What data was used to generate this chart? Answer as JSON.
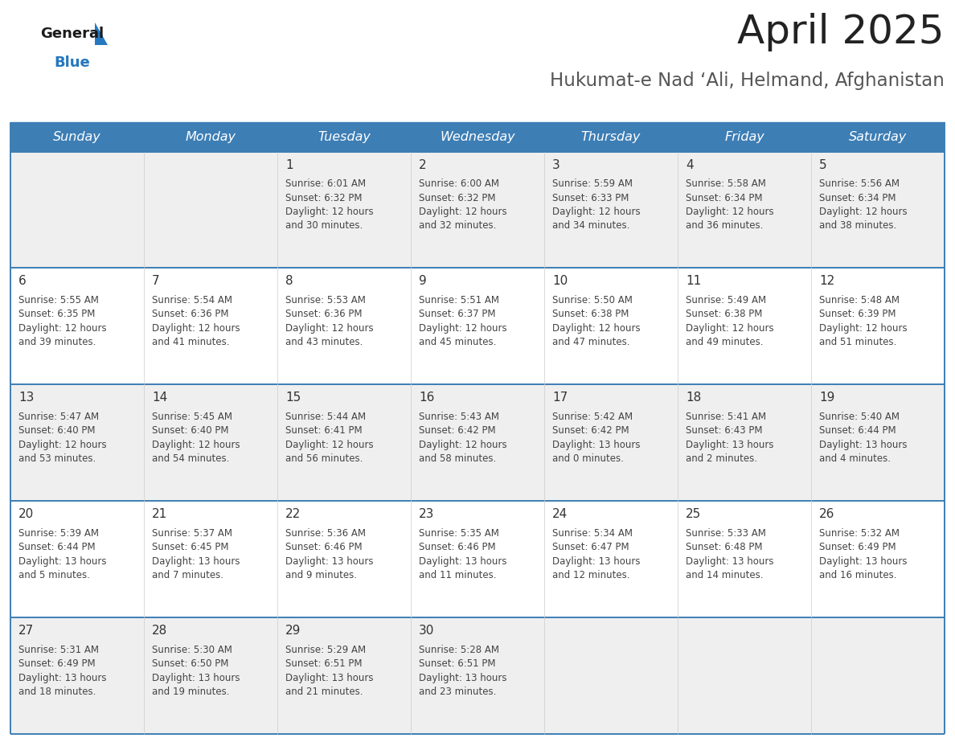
{
  "title": "April 2025",
  "subtitle": "Hukumat-e Nad ‘Ali, Helmand, Afghanistan",
  "days_of_week": [
    "Sunday",
    "Monday",
    "Tuesday",
    "Wednesday",
    "Thursday",
    "Friday",
    "Saturday"
  ],
  "header_bg_color": "#3D7EB5",
  "header_text_color": "#FFFFFF",
  "row_bg_odd": "#EFEFEF",
  "row_bg_even": "#FFFFFF",
  "cell_border_color": "#3D7EB5",
  "cell_divider_color": "#CCCCCC",
  "day_number_color": "#333333",
  "cell_text_color": "#444444",
  "title_color": "#222222",
  "subtitle_color": "#555555",
  "logo_general_color": "#1a1a1a",
  "logo_blue_color": "#2478C0",
  "calendar_data": [
    [
      {
        "day": null,
        "sunrise": null,
        "sunset": null,
        "daylight": null
      },
      {
        "day": null,
        "sunrise": null,
        "sunset": null,
        "daylight": null
      },
      {
        "day": 1,
        "sunrise": "6:01 AM",
        "sunset": "6:32 PM",
        "daylight": "12 hours\nand 30 minutes."
      },
      {
        "day": 2,
        "sunrise": "6:00 AM",
        "sunset": "6:32 PM",
        "daylight": "12 hours\nand 32 minutes."
      },
      {
        "day": 3,
        "sunrise": "5:59 AM",
        "sunset": "6:33 PM",
        "daylight": "12 hours\nand 34 minutes."
      },
      {
        "day": 4,
        "sunrise": "5:58 AM",
        "sunset": "6:34 PM",
        "daylight": "12 hours\nand 36 minutes."
      },
      {
        "day": 5,
        "sunrise": "5:56 AM",
        "sunset": "6:34 PM",
        "daylight": "12 hours\nand 38 minutes."
      }
    ],
    [
      {
        "day": 6,
        "sunrise": "5:55 AM",
        "sunset": "6:35 PM",
        "daylight": "12 hours\nand 39 minutes."
      },
      {
        "day": 7,
        "sunrise": "5:54 AM",
        "sunset": "6:36 PM",
        "daylight": "12 hours\nand 41 minutes."
      },
      {
        "day": 8,
        "sunrise": "5:53 AM",
        "sunset": "6:36 PM",
        "daylight": "12 hours\nand 43 minutes."
      },
      {
        "day": 9,
        "sunrise": "5:51 AM",
        "sunset": "6:37 PM",
        "daylight": "12 hours\nand 45 minutes."
      },
      {
        "day": 10,
        "sunrise": "5:50 AM",
        "sunset": "6:38 PM",
        "daylight": "12 hours\nand 47 minutes."
      },
      {
        "day": 11,
        "sunrise": "5:49 AM",
        "sunset": "6:38 PM",
        "daylight": "12 hours\nand 49 minutes."
      },
      {
        "day": 12,
        "sunrise": "5:48 AM",
        "sunset": "6:39 PM",
        "daylight": "12 hours\nand 51 minutes."
      }
    ],
    [
      {
        "day": 13,
        "sunrise": "5:47 AM",
        "sunset": "6:40 PM",
        "daylight": "12 hours\nand 53 minutes."
      },
      {
        "day": 14,
        "sunrise": "5:45 AM",
        "sunset": "6:40 PM",
        "daylight": "12 hours\nand 54 minutes."
      },
      {
        "day": 15,
        "sunrise": "5:44 AM",
        "sunset": "6:41 PM",
        "daylight": "12 hours\nand 56 minutes."
      },
      {
        "day": 16,
        "sunrise": "5:43 AM",
        "sunset": "6:42 PM",
        "daylight": "12 hours\nand 58 minutes."
      },
      {
        "day": 17,
        "sunrise": "5:42 AM",
        "sunset": "6:42 PM",
        "daylight": "13 hours\nand 0 minutes."
      },
      {
        "day": 18,
        "sunrise": "5:41 AM",
        "sunset": "6:43 PM",
        "daylight": "13 hours\nand 2 minutes."
      },
      {
        "day": 19,
        "sunrise": "5:40 AM",
        "sunset": "6:44 PM",
        "daylight": "13 hours\nand 4 minutes."
      }
    ],
    [
      {
        "day": 20,
        "sunrise": "5:39 AM",
        "sunset": "6:44 PM",
        "daylight": "13 hours\nand 5 minutes."
      },
      {
        "day": 21,
        "sunrise": "5:37 AM",
        "sunset": "6:45 PM",
        "daylight": "13 hours\nand 7 minutes."
      },
      {
        "day": 22,
        "sunrise": "5:36 AM",
        "sunset": "6:46 PM",
        "daylight": "13 hours\nand 9 minutes."
      },
      {
        "day": 23,
        "sunrise": "5:35 AM",
        "sunset": "6:46 PM",
        "daylight": "13 hours\nand 11 minutes."
      },
      {
        "day": 24,
        "sunrise": "5:34 AM",
        "sunset": "6:47 PM",
        "daylight": "13 hours\nand 12 minutes."
      },
      {
        "day": 25,
        "sunrise": "5:33 AM",
        "sunset": "6:48 PM",
        "daylight": "13 hours\nand 14 minutes."
      },
      {
        "day": 26,
        "sunrise": "5:32 AM",
        "sunset": "6:49 PM",
        "daylight": "13 hours\nand 16 minutes."
      }
    ],
    [
      {
        "day": 27,
        "sunrise": "5:31 AM",
        "sunset": "6:49 PM",
        "daylight": "13 hours\nand 18 minutes."
      },
      {
        "day": 28,
        "sunrise": "5:30 AM",
        "sunset": "6:50 PM",
        "daylight": "13 hours\nand 19 minutes."
      },
      {
        "day": 29,
        "sunrise": "5:29 AM",
        "sunset": "6:51 PM",
        "daylight": "13 hours\nand 21 minutes."
      },
      {
        "day": 30,
        "sunrise": "5:28 AM",
        "sunset": "6:51 PM",
        "daylight": "13 hours\nand 23 minutes."
      },
      {
        "day": null,
        "sunrise": null,
        "sunset": null,
        "daylight": null
      },
      {
        "day": null,
        "sunrise": null,
        "sunset": null,
        "daylight": null
      },
      {
        "day": null,
        "sunrise": null,
        "sunset": null,
        "daylight": null
      }
    ]
  ]
}
